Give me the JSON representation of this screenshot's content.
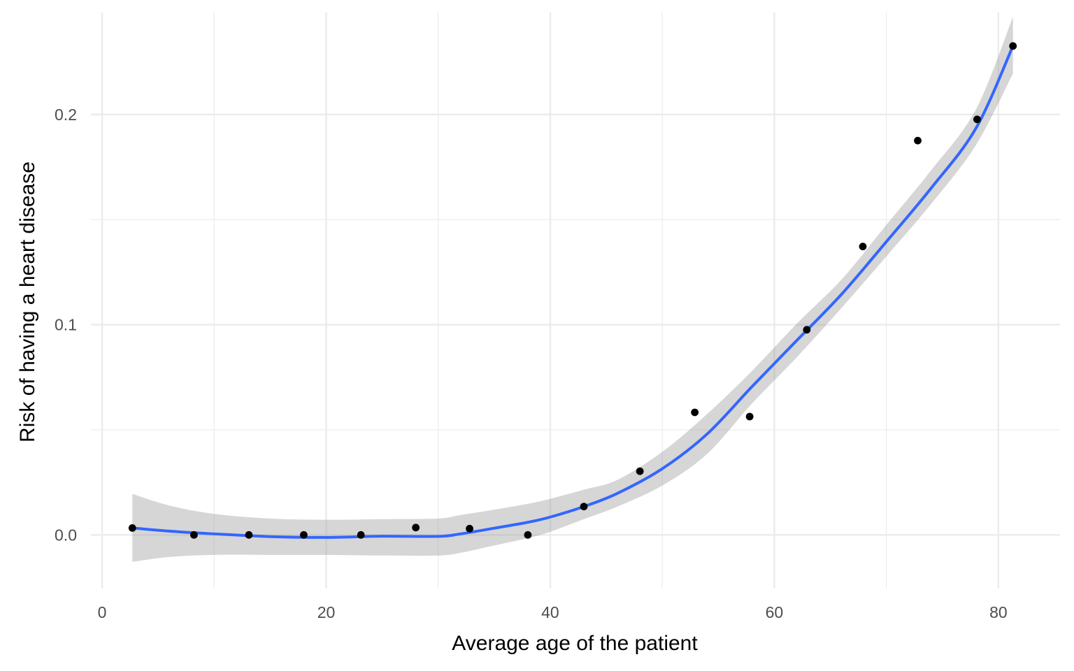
{
  "chart_data": {
    "type": "scatter",
    "title": "",
    "xlabel": "Average age of the patient",
    "ylabel": "Risk of having a heart disease",
    "xlim": [
      -1,
      85.5
    ],
    "ylim": [
      -0.0255,
      0.2485
    ],
    "x_ticks": [
      0,
      20,
      40,
      60,
      80
    ],
    "x_tick_labels": [
      "0",
      "20",
      "40",
      "60",
      "80"
    ],
    "x_minor_ticks": [
      10,
      30,
      50,
      70
    ],
    "y_ticks": [
      0.0,
      0.1,
      0.2
    ],
    "y_tick_labels": [
      "0.0",
      "0.1",
      "0.2"
    ],
    "y_minor_ticks": [
      0.05,
      0.15
    ],
    "grid": true,
    "legend": "none",
    "colors": {
      "points": "#000000",
      "smooth_line": "#3366ff",
      "confidence_band": "#999999",
      "grid": "#ebebeb"
    },
    "points": {
      "x": [
        2.7,
        8.2,
        13.1,
        18.0,
        23.1,
        28.0,
        32.8,
        38.0,
        43.0,
        48.0,
        52.9,
        57.8,
        62.9,
        67.9,
        72.8,
        78.1,
        81.3
      ],
      "y": [
        0.0033,
        0.0,
        0.0,
        0.0,
        0.0,
        0.0035,
        0.003,
        0.0,
        0.0135,
        0.0303,
        0.0583,
        0.0563,
        0.0976,
        0.1372,
        0.1876,
        0.1977,
        0.2326
      ]
    },
    "smooth": {
      "name": "",
      "x": [
        2.7,
        6,
        10,
        15,
        20,
        25,
        30,
        32,
        35,
        38,
        40,
        43,
        46,
        50,
        54,
        58,
        62,
        66,
        70,
        74,
        78,
        81.3
      ],
      "y": [
        0.0033,
        0.0018,
        0.0005,
        -0.0008,
        -0.0012,
        -0.0006,
        -0.0007,
        0.0005,
        0.0032,
        0.006,
        0.0085,
        0.0135,
        0.0198,
        0.0315,
        0.048,
        0.0705,
        0.0925,
        0.1145,
        0.1395,
        0.165,
        0.1935,
        0.2326
      ],
      "lower": [
        -0.0128,
        -0.0105,
        -0.0095,
        -0.0095,
        -0.0095,
        -0.0098,
        -0.0098,
        -0.0085,
        -0.005,
        -0.0015,
        0.0015,
        0.0075,
        0.0135,
        0.0235,
        0.0385,
        0.0625,
        0.0845,
        0.108,
        0.1325,
        0.1575,
        0.1855,
        0.2195
      ],
      "upper": [
        0.0195,
        0.014,
        0.01,
        0.0078,
        0.0072,
        0.0075,
        0.0078,
        0.0095,
        0.012,
        0.0148,
        0.0172,
        0.0215,
        0.0262,
        0.0395,
        0.0575,
        0.078,
        0.1005,
        0.1215,
        0.1475,
        0.1735,
        0.2025,
        0.2465
      ]
    }
  }
}
